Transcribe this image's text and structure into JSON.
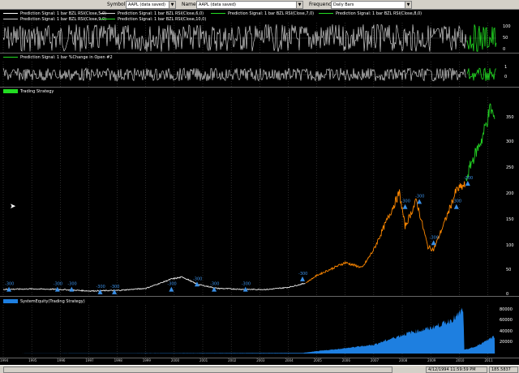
{
  "toolbar": {
    "symbol_label": "Symbol",
    "symbol_value": "AAPL (data saved)",
    "name_label": "Name",
    "name_value": "AAPL (data saved)",
    "frequency_label": "Frequency",
    "frequency_value": "Daily Bars"
  },
  "panes": {
    "signal_legends": [
      "Prediction Signal: 1 bar BZL RSI(Close,5,0)",
      "Prediction Signal: 1 bar BZL RSI(Close,6,0)",
      "Prediction Signal: 1 bar BZL RSI(Close,7,0)",
      "Prediction Signal: 1 bar BZL RSI(Close,8,0)",
      "Prediction Signal: 1 bar BZL RSI(Close,9,0)",
      "Prediction Signal: 1 bar BZL RSI(Close,10,0)"
    ],
    "signal_axis": [
      "100",
      "50",
      "0"
    ],
    "change_legend": "Prediction Signal: 1 bar %Change in Open #2",
    "change_axis": [
      "1",
      "0"
    ],
    "strategy_legend": "Trading Strategy",
    "strategy_axis": [
      "350",
      "300",
      "250",
      "200",
      "150",
      "100",
      "50",
      "0"
    ],
    "equity_legend": "SystemEquity(Trading Strategy)",
    "equity_axis": [
      "80000",
      "60000",
      "40000",
      "20000"
    ]
  },
  "trade_markers": [
    {
      "text": "-300",
      "year": 1994.2,
      "price": 10
    },
    {
      "text": "-300",
      "year": 1995.9,
      "price": 10
    },
    {
      "text": "-300",
      "year": 1996.4,
      "price": 10
    },
    {
      "text": "-300",
      "year": 1997.4,
      "price": 5
    },
    {
      "text": "-300",
      "year": 1997.9,
      "price": 5
    },
    {
      "text": "-300",
      "year": 1999.9,
      "price": 10
    },
    {
      "text": "-300",
      "year": 2000.8,
      "price": 20
    },
    {
      "text": "-300",
      "year": 2001.4,
      "price": 10
    },
    {
      "text": "-300",
      "year": 2002.5,
      "price": 10
    },
    {
      "text": "-300",
      "year": 2004.5,
      "price": 30
    },
    {
      "text": "-300",
      "year": 2008.1,
      "price": 170
    },
    {
      "text": "-300",
      "year": 2008.6,
      "price": 180
    },
    {
      "text": "-300",
      "year": 2009.1,
      "price": 100
    },
    {
      "text": "-300",
      "year": 2009.9,
      "price": 170
    },
    {
      "text": "-300",
      "year": 2010.3,
      "price": 215
    }
  ],
  "date_axis": [
    "1994",
    "1995",
    "1996",
    "1997",
    "1998",
    "1999",
    "2000",
    "2001",
    "2002",
    "2003",
    "2004",
    "2005",
    "2006",
    "2007",
    "2008",
    "2009",
    "2010",
    "2011"
  ],
  "status": {
    "datetime": "4/12/1994 11:59:59 PM",
    "value": "185.5837"
  },
  "colors": {
    "signal_line": "#e8e8e8",
    "signal_recent": "#22dd22",
    "price_early": "#e8e8e8",
    "price_mid": "#ff8800",
    "price_late": "#22cc22",
    "equity_fill": "#1e7fe0",
    "marker": "#3a8fe6"
  }
}
